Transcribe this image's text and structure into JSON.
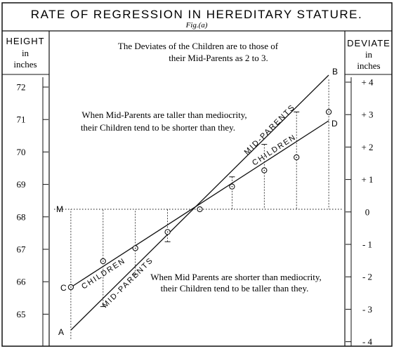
{
  "title": "RATE OF REGRESSION IN HEREDITARY STATURE.",
  "fig_label": "Fig.(a)",
  "left_column": {
    "heading": "HEIGHT",
    "sub1": "in",
    "sub2": "inches"
  },
  "right_column": {
    "heading": "DEVIATE",
    "sub1": "in",
    "sub2": "inches"
  },
  "top_note": {
    "line1": "The Deviates of the Children are to those of",
    "line2": "their Mid-Parents as 2 to 3."
  },
  "upper_note": {
    "line1": "When Mid-Parents are taller than mediocrity,",
    "line2": "their Children tend to be shorter than they."
  },
  "lower_note": {
    "line1": "When Mid Parents are shorter than mediocrity,",
    "line2": "their Children tend to be taller than they."
  },
  "height_ticks": [
    "72",
    "71",
    "70",
    "69",
    "68",
    "67",
    "66",
    "65"
  ],
  "deviate_ticks": [
    "+ 4",
    "+ 3",
    "+ 2",
    "+ 1",
    "0",
    "- 1",
    "- 2",
    "- 3",
    "- 4"
  ],
  "line_labels": {
    "mid_parents_upper": "MID-PARENTS",
    "children_upper": "CHILDREN",
    "children_lower": "CHILDREN",
    "mid_parents_lower": "MID-PARENTS"
  },
  "point_letters": {
    "a": "A",
    "b": "B",
    "c": "C",
    "d": "D",
    "m": "M"
  },
  "chart_data": {
    "type": "line",
    "mediocrity_height": 68.25,
    "deviate_range": [
      -4,
      4
    ],
    "series": [
      {
        "name": "MID-PARENTS",
        "x": [
          -4,
          4
        ],
        "y": [
          -4,
          4
        ]
      },
      {
        "name": "CHILDREN",
        "x": [
          -4,
          4
        ],
        "y": [
          -2.67,
          2.67
        ]
      }
    ],
    "mid_parent_deviates": [
      -4,
      -3,
      -2,
      -1,
      0,
      1,
      2,
      3,
      4
    ],
    "children_points": {
      "x": [
        -4,
        -3,
        -2,
        -1,
        0,
        1,
        2,
        3,
        4
      ],
      "y": [
        -2.4,
        -1.6,
        -1.2,
        -0.7,
        0,
        0.7,
        1.2,
        1.6,
        3
      ]
    }
  }
}
